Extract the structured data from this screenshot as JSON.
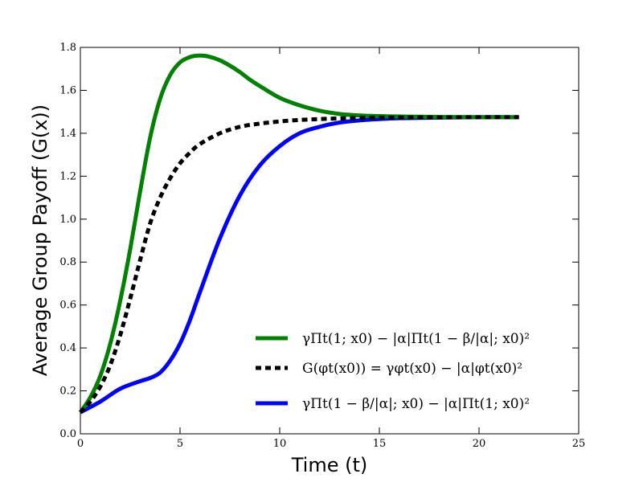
{
  "chart_data": {
    "type": "line",
    "title": "",
    "xlabel": "Time (t)",
    "ylabel": "Average Group Payoff (G(x))",
    "xlim": [
      0,
      25
    ],
    "ylim": [
      0,
      1.8
    ],
    "xticks": [
      "0",
      "5",
      "10",
      "15",
      "20",
      "25"
    ],
    "yticks": [
      "0.0",
      "0.2",
      "0.4",
      "0.6",
      "0.8",
      "1.0",
      "1.2",
      "1.4",
      "1.6",
      "1.8"
    ],
    "grid": false,
    "legend_position": "lower-right",
    "series": [
      {
        "name": "γΠt(1; x0) − |α|Πt(1 − β/|α|; x0)²",
        "color": "#008000",
        "style": "solid",
        "x": [
          0,
          0.5,
          1,
          1.5,
          2,
          2.5,
          3,
          3.5,
          4,
          4.5,
          5,
          5.5,
          6,
          6.5,
          7,
          7.5,
          8,
          8.5,
          9,
          10,
          11,
          12,
          13,
          14,
          15,
          16,
          17,
          18,
          20,
          22
        ],
        "y": [
          0.1,
          0.17,
          0.27,
          0.42,
          0.62,
          0.86,
          1.13,
          1.38,
          1.56,
          1.67,
          1.73,
          1.755,
          1.762,
          1.756,
          1.74,
          1.715,
          1.685,
          1.65,
          1.62,
          1.565,
          1.53,
          1.505,
          1.49,
          1.483,
          1.48,
          1.478,
          1.477,
          1.476,
          1.475,
          1.475
        ]
      },
      {
        "name": "G(φt(x0)) = γφt(x0) − |α|φt(x0)²",
        "color": "#000000",
        "style": "dashed",
        "x": [
          0,
          0.5,
          1,
          1.5,
          2,
          2.5,
          3,
          3.5,
          4,
          4.5,
          5,
          5.5,
          6,
          7,
          8,
          9,
          10,
          11,
          12,
          13,
          14,
          16,
          18,
          20,
          22
        ],
        "y": [
          0.1,
          0.15,
          0.22,
          0.32,
          0.46,
          0.63,
          0.81,
          0.98,
          1.1,
          1.19,
          1.26,
          1.31,
          1.35,
          1.4,
          1.43,
          1.445,
          1.455,
          1.462,
          1.466,
          1.469,
          1.471,
          1.473,
          1.474,
          1.475,
          1.475
        ]
      },
      {
        "name": "γΠt(1 − β/|α|; x0) − |α|Πt(1; x0)²",
        "color": "#0000ff",
        "style": "solid",
        "x": [
          0,
          1,
          2,
          3,
          3.5,
          4,
          4.5,
          5,
          5.5,
          6,
          7,
          8,
          9,
          10,
          11,
          12,
          13,
          14,
          15,
          16,
          18,
          20,
          22
        ],
        "y": [
          0.1,
          0.15,
          0.21,
          0.245,
          0.26,
          0.285,
          0.34,
          0.42,
          0.53,
          0.66,
          0.91,
          1.11,
          1.25,
          1.34,
          1.4,
          1.43,
          1.45,
          1.46,
          1.466,
          1.47,
          1.473,
          1.475,
          1.475
        ]
      }
    ]
  }
}
